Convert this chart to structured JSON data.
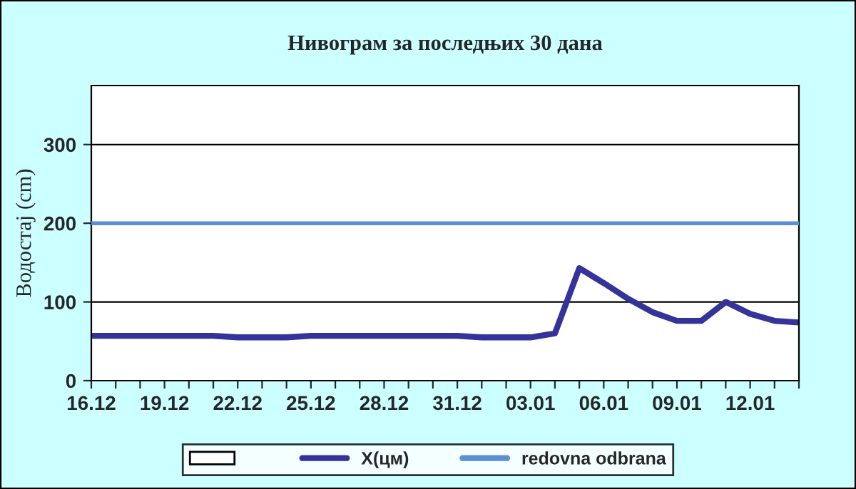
{
  "chart_data": {
    "type": "line",
    "title": "Нивограм за последњих 30 дана",
    "ylabel": "Водостај (cm)",
    "categories": [
      "16.12",
      null,
      null,
      "19.12",
      null,
      null,
      "22.12",
      null,
      null,
      "25.12",
      null,
      null,
      "28.12",
      null,
      null,
      "31.12",
      null,
      null,
      "03.01",
      null,
      null,
      "06.01",
      null,
      null,
      "09.01",
      null,
      null,
      "12.01",
      null,
      null
    ],
    "series": [
      {
        "type": "bar",
        "color": "#ffffff",
        "values": [
          null,
          null,
          null,
          null,
          null,
          null,
          null,
          null,
          null,
          null,
          null,
          null,
          null,
          null,
          null,
          null,
          null,
          null,
          null,
          null,
          null,
          null,
          null,
          null,
          null,
          null,
          null,
          null,
          null,
          null
        ]
      },
      {
        "name": "X(цм)",
        "color": "#333399",
        "values": [
          57,
          57,
          57,
          57,
          57,
          57,
          55,
          55,
          55,
          57,
          57,
          57,
          57,
          57,
          57,
          57,
          55,
          55,
          55,
          60,
          143,
          124,
          104,
          87,
          76,
          76,
          100,
          85,
          76,
          74
        ]
      }
    ],
    "ref_lines": [
      {
        "axis": "y",
        "value": 200,
        "label": "redovna odbrana",
        "color": "#5b8fd6"
      }
    ],
    "ylim": [
      0,
      375
    ],
    "yticks": [
      0,
      100,
      200,
      300
    ],
    "grid": "y",
    "legend": "bottom"
  }
}
